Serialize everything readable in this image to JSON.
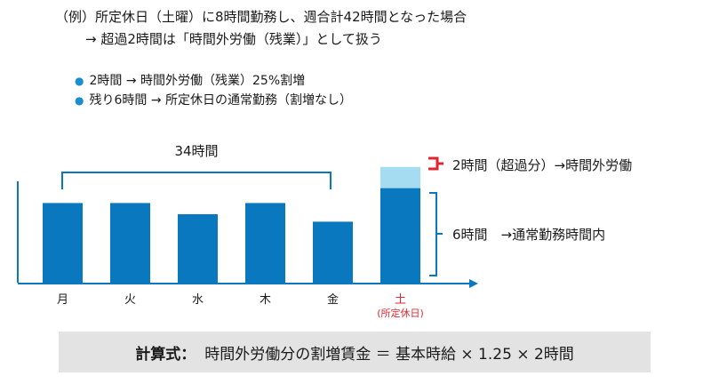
{
  "intro": {
    "line1": "（例）所定休日（土曜）に8時間勤務し、週合計42時間となった場合",
    "line2": "→ 超過2時間は「時間外労働（残業）」として扱う"
  },
  "bullets": [
    "2時間 → 時間外労働（残業）25%割増",
    "残り6時間 → 所定休日の通常勤務（割増なし）"
  ],
  "diagram": {
    "bracket_label": "34時間",
    "days": [
      {
        "label": "月",
        "level": 0.64
      },
      {
        "label": "火",
        "level": 0.64
      },
      {
        "label": "水",
        "level": 0.55
      },
      {
        "label": "木",
        "level": 0.64
      },
      {
        "label": "金",
        "level": 0.49
      },
      {
        "label": "土",
        "level": 0.76,
        "extra": 0.17,
        "sub": "(所定休日)"
      }
    ],
    "overtime_note": "2時間（超過分）→時間外労働",
    "regular_note": "6時間　→通常勤務時間内",
    "colors": {
      "bar": "#0a78bf",
      "overtime": "#a6dcf2",
      "accent": "#e0262f",
      "bracket": "#0a78bf",
      "holiday_text": "#e0262f"
    }
  },
  "formula": {
    "label": "計算式：",
    "text": "時間外労働分の割増賃金 ＝ 基本時給 × 1.25 × 2時間"
  }
}
